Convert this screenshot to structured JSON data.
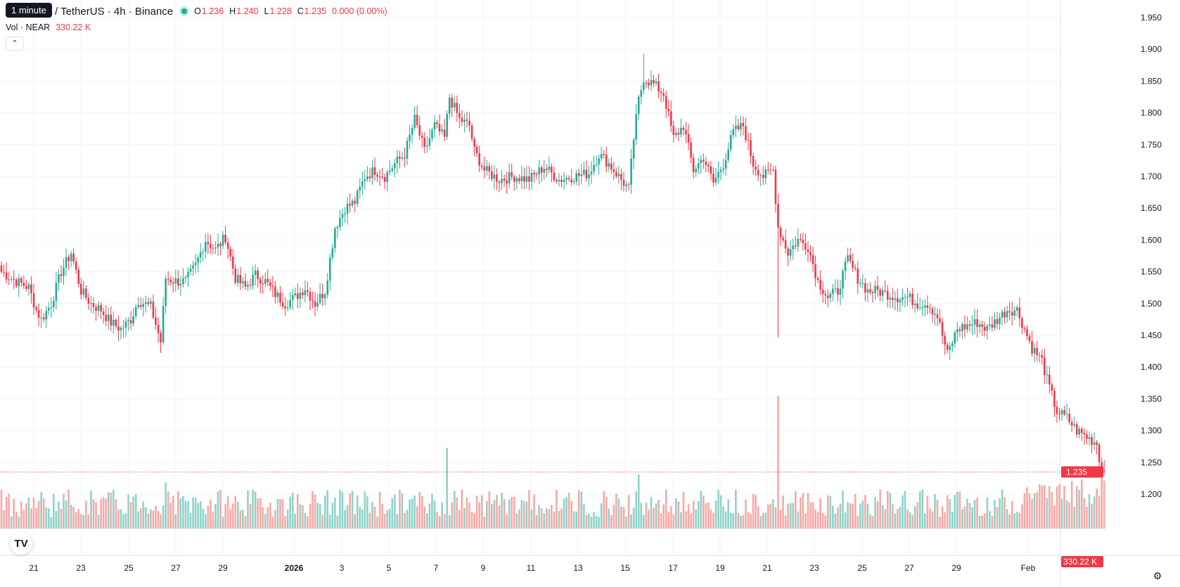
{
  "legend": {
    "tooltip": "1 minute",
    "symbol": "/ TetherUS · 4h · Binance",
    "o_label": "O",
    "o_value": "1.236",
    "h_label": "H",
    "h_value": "1.240",
    "l_label": "L",
    "l_value": "1.228",
    "c_label": "C",
    "c_value": "1.235",
    "change": "0.000 (0.00%)"
  },
  "volume_legend": {
    "label": "Vol · NEAR",
    "value": "330.22 K"
  },
  "colors": {
    "up": "#22ab94",
    "down": "#f23645",
    "up_vol": "#8fd3c9",
    "down_vol": "#f7a9a7",
    "grid": "#f0f3fa"
  },
  "icons": {
    "logo": "tradingview-logo-icon",
    "settings": "gear-icon",
    "collapse": "chevron-up-icon"
  },
  "price_badge": "1.235",
  "volume_badge": "330.22 K",
  "chart_data": {
    "type": "candlestick",
    "timeframe": "4h",
    "price_axis": {
      "min": 1.16,
      "max": 1.975,
      "ticks": [
        "1.950",
        "1.900",
        "1.850",
        "1.800",
        "1.750",
        "1.700",
        "1.650",
        "1.600",
        "1.550",
        "1.500",
        "1.450",
        "1.400",
        "1.350",
        "1.300",
        "1.250",
        "1.200"
      ]
    },
    "x_axis_labels": [
      "21",
      "23",
      "25",
      "27",
      "29",
      "2026",
      "3",
      "5",
      "7",
      "9",
      "11",
      "13",
      "15",
      "17",
      "19",
      "21",
      "23",
      "25",
      "27",
      "29",
      "Feb"
    ],
    "last_price": 1.235,
    "anchors": [
      [
        0,
        1.55
      ],
      [
        6,
        1.535
      ],
      [
        11,
        1.525
      ],
      [
        14,
        1.49
      ],
      [
        16,
        1.475
      ],
      [
        20,
        1.5
      ],
      [
        24,
        1.55
      ],
      [
        28,
        1.58
      ],
      [
        32,
        1.52
      ],
      [
        36,
        1.5
      ],
      [
        40,
        1.49
      ],
      [
        44,
        1.47
      ],
      [
        48,
        1.46
      ],
      [
        52,
        1.475
      ],
      [
        55,
        1.505
      ],
      [
        60,
        1.495
      ],
      [
        64,
        1.44
      ],
      [
        66,
        1.54
      ],
      [
        70,
        1.535
      ],
      [
        74,
        1.535
      ],
      [
        78,
        1.56
      ],
      [
        82,
        1.6
      ],
      [
        86,
        1.585
      ],
      [
        90,
        1.605
      ],
      [
        94,
        1.54
      ],
      [
        98,
        1.525
      ],
      [
        102,
        1.545
      ],
      [
        106,
        1.535
      ],
      [
        110,
        1.515
      ],
      [
        114,
        1.5
      ],
      [
        118,
        1.51
      ],
      [
        122,
        1.525
      ],
      [
        126,
        1.5
      ],
      [
        128,
        1.51
      ],
      [
        130,
        1.52
      ],
      [
        134,
        1.62
      ],
      [
        138,
        1.65
      ],
      [
        142,
        1.66
      ],
      [
        146,
        1.7
      ],
      [
        150,
        1.71
      ],
      [
        154,
        1.7
      ],
      [
        158,
        1.72
      ],
      [
        162,
        1.735
      ],
      [
        166,
        1.79
      ],
      [
        170,
        1.74
      ],
      [
        174,
        1.78
      ],
      [
        178,
        1.76
      ],
      [
        180,
        1.825
      ],
      [
        184,
        1.79
      ],
      [
        188,
        1.78
      ],
      [
        190,
        1.74
      ],
      [
        194,
        1.71
      ],
      [
        200,
        1.695
      ],
      [
        206,
        1.7
      ],
      [
        212,
        1.695
      ],
      [
        218,
        1.715
      ],
      [
        224,
        1.695
      ],
      [
        230,
        1.7
      ],
      [
        236,
        1.705
      ],
      [
        240,
        1.735
      ],
      [
        244,
        1.72
      ],
      [
        248,
        1.7
      ],
      [
        252,
        1.68
      ],
      [
        254,
        1.76
      ],
      [
        256,
        1.82
      ],
      [
        258,
        1.855
      ],
      [
        262,
        1.845
      ],
      [
        266,
        1.83
      ],
      [
        270,
        1.76
      ],
      [
        274,
        1.78
      ],
      [
        278,
        1.71
      ],
      [
        282,
        1.73
      ],
      [
        286,
        1.69
      ],
      [
        290,
        1.72
      ],
      [
        294,
        1.77
      ],
      [
        298,
        1.78
      ],
      [
        302,
        1.72
      ],
      [
        306,
        1.7
      ],
      [
        310,
        1.71
      ],
      [
        312,
        1.62
      ],
      [
        316,
        1.58
      ],
      [
        320,
        1.6
      ],
      [
        324,
        1.59
      ],
      [
        328,
        1.535
      ],
      [
        332,
        1.51
      ],
      [
        336,
        1.52
      ],
      [
        340,
        1.57
      ],
      [
        344,
        1.54
      ],
      [
        348,
        1.52
      ],
      [
        352,
        1.52
      ],
      [
        356,
        1.515
      ],
      [
        360,
        1.51
      ],
      [
        364,
        1.51
      ],
      [
        368,
        1.5
      ],
      [
        372,
        1.5
      ],
      [
        376,
        1.48
      ],
      [
        380,
        1.42
      ],
      [
        384,
        1.46
      ],
      [
        388,
        1.465
      ],
      [
        392,
        1.47
      ],
      [
        396,
        1.46
      ],
      [
        400,
        1.475
      ],
      [
        404,
        1.49
      ],
      [
        408,
        1.49
      ],
      [
        410,
        1.47
      ],
      [
        414,
        1.43
      ],
      [
        418,
        1.41
      ],
      [
        420,
        1.38
      ],
      [
        424,
        1.33
      ],
      [
        428,
        1.32
      ],
      [
        432,
        1.3
      ],
      [
        436,
        1.29
      ],
      [
        440,
        1.28
      ],
      [
        442,
        1.236
      ],
      [
        443,
        1.235
      ]
    ],
    "volume_spikes": [
      [
        312,
        1.35
      ],
      [
        179,
        0.82
      ],
      [
        256,
        0.55
      ],
      [
        442,
        0.53
      ],
      [
        66,
        0.47
      ],
      [
        425,
        0.45
      ]
    ]
  }
}
